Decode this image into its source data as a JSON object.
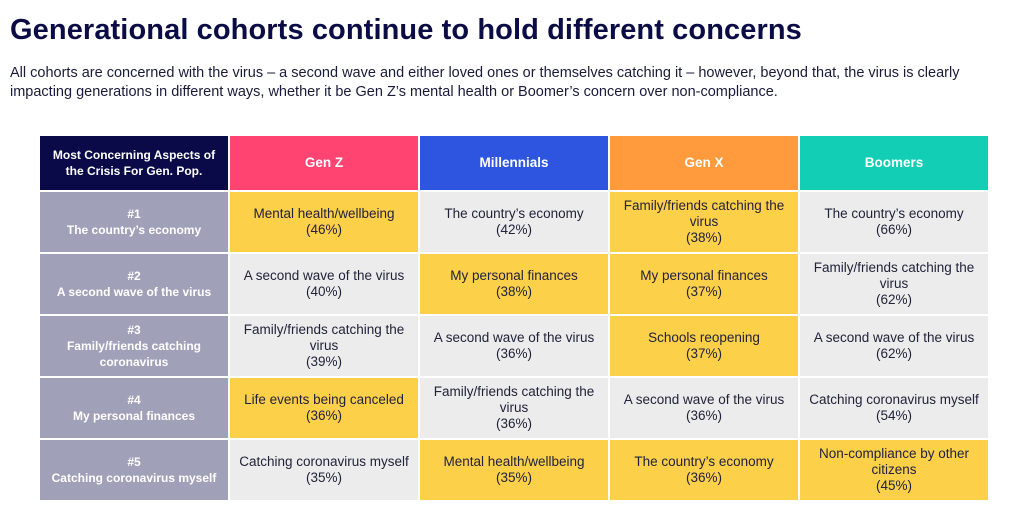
{
  "title": "Generational cohorts continue to hold different concerns",
  "subtitle": "All cohorts are concerned with the virus – a second wave and either loved ones or themselves catching it – however, beyond that, the virus is clearly impacting generations in different ways, whether it be Gen Z’s mental health or Boomer’s concern over non-compliance.",
  "colors": {
    "corner": "#0a0a48",
    "gen_z": "#ff4472",
    "millennials": "#2d55e0",
    "gen_x": "#ff9b3d",
    "boomers": "#12ceb5",
    "highlight": "#fdd04a",
    "default": "#ececec",
    "row_label": "#a0a0b9"
  },
  "chart_data": {
    "type": "table",
    "corner_label": "Most Concerning Aspects of the Crisis For Gen. Pop.",
    "columns": [
      {
        "name": "Gen Z",
        "color": "#ff4472"
      },
      {
        "name": "Millennials",
        "color": "#2d55e0"
      },
      {
        "name": "Gen X",
        "color": "#ff9b3d"
      },
      {
        "name": "Boomers",
        "color": "#12ceb5"
      }
    ],
    "rows": [
      {
        "rank": "#1",
        "label": "The country’s economy",
        "cells": [
          {
            "text": "Mental health/wellbeing",
            "pct": "(46%)",
            "highlight": true
          },
          {
            "text": "The country’s economy",
            "pct": "(42%)",
            "highlight": false
          },
          {
            "text": "Family/friends catching the virus",
            "pct": "(38%)",
            "highlight": true
          },
          {
            "text": "The country’s economy",
            "pct": "(66%)",
            "highlight": false
          }
        ]
      },
      {
        "rank": "#2",
        "label": "A second wave of the virus",
        "cells": [
          {
            "text": "A second wave of the virus",
            "pct": "(40%)",
            "highlight": false
          },
          {
            "text": "My personal finances",
            "pct": "(38%)",
            "highlight": true
          },
          {
            "text": "My personal finances",
            "pct": "(37%)",
            "highlight": true
          },
          {
            "text": "Family/friends catching the virus",
            "pct": "(62%)",
            "highlight": false
          }
        ]
      },
      {
        "rank": "#3",
        "label": "Family/friends catching coronavirus",
        "cells": [
          {
            "text": "Family/friends catching the virus",
            "pct": "(39%)",
            "highlight": false
          },
          {
            "text": "A second wave of the virus",
            "pct": "(36%)",
            "highlight": false
          },
          {
            "text": "Schools reopening",
            "pct": "(37%)",
            "highlight": true
          },
          {
            "text": "A second wave of the virus",
            "pct": "(62%)",
            "highlight": false
          }
        ]
      },
      {
        "rank": "#4",
        "label": "My personal finances",
        "cells": [
          {
            "text": "Life events being canceled",
            "pct": "(36%)",
            "highlight": true
          },
          {
            "text": "Family/friends catching the virus",
            "pct": "(36%)",
            "highlight": false
          },
          {
            "text": "A second wave of the virus",
            "pct": "(36%)",
            "highlight": false
          },
          {
            "text": "Catching coronavirus myself",
            "pct": "(54%)",
            "highlight": false
          }
        ]
      },
      {
        "rank": "#5",
        "label": "Catching coronavirus myself",
        "cells": [
          {
            "text": "Catching coronavirus myself",
            "pct": "(35%)",
            "highlight": false
          },
          {
            "text": "Mental health/wellbeing",
            "pct": "(35%)",
            "highlight": true
          },
          {
            "text": "The country’s economy",
            "pct": "(36%)",
            "highlight": true
          },
          {
            "text": "Non-compliance by other citizens",
            "pct": "(45%)",
            "highlight": true
          }
        ]
      }
    ]
  }
}
